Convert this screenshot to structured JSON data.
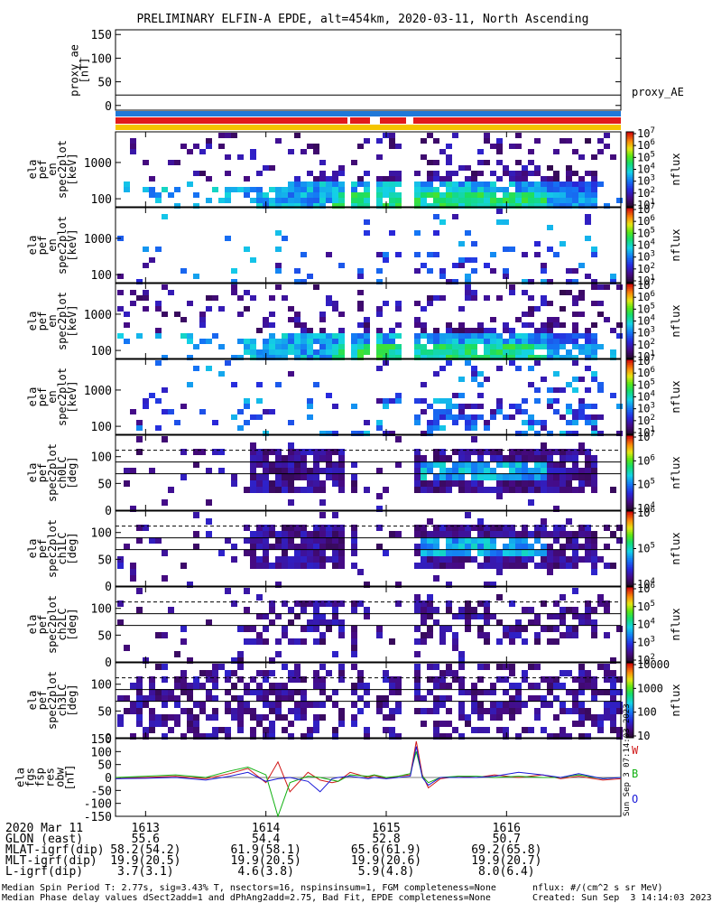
{
  "title": "PRELIMINARY ELFIN-A EPDE, alt=454km, 2020-03-11, North Ascending",
  "chart_data": [
    {
      "type": "line",
      "id": "proxy_ae",
      "ylabel_lines": [
        "proxy_ae",
        "[nT]"
      ],
      "yticks": [
        "0",
        "50",
        "100",
        "150"
      ],
      "ylim": [
        -10,
        160
      ],
      "legend": "proxy_AE",
      "series": [
        {
          "name": "proxy_AE",
          "value": 22
        }
      ]
    },
    {
      "type": "bar",
      "id": "status-bars",
      "colors": [
        "#1f78d8",
        "#e11b1b",
        "#f5c400"
      ]
    },
    {
      "type": "heatmap",
      "id": "spec-en-1",
      "ylabel_lines": [
        "ela",
        "pef",
        "en",
        "spec2plot",
        "[keV]"
      ],
      "yscale": "log",
      "yticks": [
        "100",
        "1000"
      ],
      "ylim": [
        60,
        7000
      ],
      "cbar_ticks": [
        "10^1",
        "10^2",
        "10^3",
        "10^4",
        "10^5",
        "10^6",
        "10^7"
      ],
      "cbar_label": "nflux",
      "cbar_scale": "log",
      "density": 1.0,
      "x_extent": [
        1612.75,
        1616.95
      ]
    },
    {
      "type": "heatmap",
      "id": "spec-en-2",
      "ylabel_lines": [
        "ela",
        "pef",
        "en",
        "spec2plot",
        "[keV]"
      ],
      "yscale": "log",
      "yticks": [
        "100",
        "1000"
      ],
      "ylim": [
        60,
        7000
      ],
      "cbar_ticks": [
        "10^1",
        "10^2",
        "10^3",
        "10^4",
        "10^5",
        "10^6",
        "10^7"
      ],
      "cbar_label": "nflux",
      "cbar_scale": "log",
      "density": 0.15,
      "x_extent": [
        1612.75,
        1616.95
      ]
    },
    {
      "type": "heatmap",
      "id": "spec-en-3",
      "ylabel_lines": [
        "ela",
        "pef",
        "en",
        "spec2plot",
        "[keV]"
      ],
      "yscale": "log",
      "yticks": [
        "100",
        "1000"
      ],
      "ylim": [
        60,
        7000
      ],
      "cbar_ticks": [
        "10^1",
        "10^2",
        "10^3",
        "10^4",
        "10^5",
        "10^6",
        "10^7"
      ],
      "cbar_label": "nflux",
      "cbar_scale": "log",
      "density": 1.0,
      "x_extent": [
        1612.75,
        1616.95
      ]
    },
    {
      "type": "heatmap",
      "id": "spec-en-4",
      "ylabel_lines": [
        "ela",
        "pef",
        "en",
        "spec2plot",
        "[keV]"
      ],
      "yscale": "log",
      "yticks": [
        "100",
        "1000"
      ],
      "ylim": [
        60,
        7000
      ],
      "cbar_ticks": [
        "10^1",
        "10^2",
        "10^3",
        "10^4",
        "10^5",
        "10^6",
        "10^7"
      ],
      "cbar_label": "nflux",
      "cbar_scale": "log",
      "density": 0.3,
      "x_extent": [
        1612.75,
        1616.95
      ]
    },
    {
      "type": "heatmap",
      "id": "spec-pa-0",
      "ylabel_lines": [
        "ela",
        "pef",
        "spec2plot",
        "ch0LC",
        "[deg]"
      ],
      "yticks": [
        "0",
        "50",
        "100"
      ],
      "ylim": [
        0,
        140
      ],
      "hlines_solid": [
        68,
        90
      ],
      "hlines_dashed": [
        112
      ],
      "cbar_ticks": [
        "10^4",
        "10^5",
        "10^6",
        "10^7"
      ],
      "cbar_label": "nflux",
      "cbar_scale": "log",
      "x_extent": [
        1612.75,
        1616.95
      ]
    },
    {
      "type": "heatmap",
      "id": "spec-pa-1",
      "ylabel_lines": [
        "ela",
        "pef",
        "spec2plot",
        "ch1LC",
        "[deg]"
      ],
      "yticks": [
        "0",
        "50",
        "100"
      ],
      "ylim": [
        0,
        140
      ],
      "hlines_solid": [
        68,
        90
      ],
      "hlines_dashed": [
        112
      ],
      "cbar_ticks": [
        "10^4",
        "10^5",
        "10^6"
      ],
      "cbar_label": "nflux",
      "cbar_scale": "log",
      "x_extent": [
        1612.75,
        1616.95
      ]
    },
    {
      "type": "heatmap",
      "id": "spec-pa-2",
      "ylabel_lines": [
        "ela",
        "pef",
        "spec2plot",
        "ch2LC",
        "[deg]"
      ],
      "yticks": [
        "0",
        "50",
        "100"
      ],
      "ylim": [
        0,
        140
      ],
      "hlines_solid": [
        68,
        90
      ],
      "hlines_dashed": [
        112
      ],
      "cbar_ticks": [
        "10^2",
        "10^3",
        "10^4",
        "10^5",
        "10^6"
      ],
      "cbar_label": "nflux",
      "cbar_scale": "log",
      "x_extent": [
        1612.75,
        1616.95
      ]
    },
    {
      "type": "heatmap",
      "id": "spec-pa-3",
      "ylabel_lines": [
        "ela",
        "pef",
        "spec2plot",
        "ch3LC",
        "[deg]"
      ],
      "yticks": [
        "0",
        "50",
        "100"
      ],
      "ylim": [
        0,
        140
      ],
      "hlines_solid": [
        68,
        90
      ],
      "hlines_dashed": [
        112
      ],
      "cbar_ticks": [
        "10",
        "100",
        "1000",
        "10000"
      ],
      "cbar_label": "nflux",
      "cbar_scale": "log",
      "x_extent": [
        1612.75,
        1616.95
      ]
    },
    {
      "type": "line",
      "id": "fgm",
      "ylabel_lines": [
        "ela",
        "fgs",
        "fsp",
        "res",
        "obw",
        "[nT]"
      ],
      "yticks": [
        "-150",
        "-100",
        "-50",
        "0",
        "50",
        "100",
        "150"
      ],
      "ylim": [
        -150,
        150
      ],
      "legend_labels": [
        "W",
        "B",
        "O"
      ],
      "xlim": [
        1612.75,
        1616.95
      ],
      "series": [
        {
          "name": "W",
          "color": "#d01818",
          "x": [
            1612.75,
            1613.0,
            1613.25,
            1613.5,
            1613.7,
            1613.85,
            1614.0,
            1614.1,
            1614.2,
            1614.35,
            1614.45,
            1614.55,
            1614.6,
            1614.7,
            1614.85,
            1614.9,
            1615.0,
            1615.1,
            1615.2,
            1615.25,
            1615.3,
            1615.35,
            1615.45,
            1615.6,
            1615.75,
            1615.9,
            1616.1,
            1616.3,
            1616.45,
            1616.6,
            1616.8,
            1616.95
          ],
          "y": [
            -5,
            0,
            5,
            -5,
            15,
            35,
            -20,
            60,
            -55,
            20,
            -10,
            -20,
            -15,
            20,
            0,
            8,
            -5,
            5,
            10,
            140,
            10,
            -40,
            -5,
            5,
            0,
            10,
            0,
            10,
            -5,
            5,
            -10,
            -5
          ]
        },
        {
          "name": "B",
          "color": "#10b010",
          "x": [
            1612.75,
            1613.0,
            1613.25,
            1613.5,
            1613.7,
            1613.85,
            1614.0,
            1614.1,
            1614.2,
            1614.35,
            1614.45,
            1614.55,
            1614.6,
            1614.7,
            1614.85,
            1614.9,
            1615.0,
            1615.1,
            1615.2,
            1615.25,
            1615.3,
            1615.35,
            1615.45,
            1615.6,
            1615.75,
            1615.9,
            1616.1,
            1616.3,
            1616.45,
            1616.6,
            1616.8,
            1616.95
          ],
          "y": [
            0,
            5,
            10,
            0,
            25,
            40,
            10,
            -150,
            -20,
            5,
            0,
            -10,
            -15,
            10,
            5,
            10,
            0,
            5,
            15,
            100,
            5,
            -20,
            0,
            5,
            5,
            0,
            5,
            0,
            0,
            10,
            -5,
            0
          ]
        },
        {
          "name": "O",
          "color": "#1818d8",
          "x": [
            1612.75,
            1613.0,
            1613.25,
            1613.5,
            1613.7,
            1613.85,
            1614.0,
            1614.1,
            1614.2,
            1614.35,
            1614.45,
            1614.55,
            1614.6,
            1614.7,
            1614.85,
            1614.9,
            1615.0,
            1615.1,
            1615.2,
            1615.25,
            1615.3,
            1615.35,
            1615.45,
            1615.6,
            1615.75,
            1615.9,
            1616.1,
            1616.3,
            1616.45,
            1616.6,
            1616.8,
            1616.95
          ],
          "y": [
            -5,
            -3,
            0,
            -10,
            5,
            20,
            -15,
            -5,
            0,
            -15,
            -55,
            -5,
            0,
            5,
            -5,
            0,
            -5,
            0,
            5,
            120,
            0,
            -30,
            0,
            0,
            0,
            5,
            20,
            10,
            0,
            15,
            -5,
            0
          ]
        }
      ]
    }
  ],
  "xaxis": {
    "rows": [
      {
        "label": "2020 Mar 11",
        "values": [
          "1613",
          "1614",
          "1615",
          "1616"
        ]
      },
      {
        "label": "GLON (east)",
        "values": [
          "55.6",
          "54.4",
          "52.8",
          "50.7"
        ]
      },
      {
        "label": "MLAT-igrf(dip)",
        "values": [
          "58.2(54.2)",
          "61.9(58.1)",
          "65.6(61.9)",
          "69.2(65.8)"
        ]
      },
      {
        "label": "MLT-igrf(dip)",
        "values": [
          "19.9(20.5)",
          "19.9(20.5)",
          "19.9(20.6)",
          "19.9(20.7)"
        ]
      },
      {
        "label": "L-igrf(dip)",
        "values": [
          "3.7(3.1)",
          "4.6(3.8)",
          "5.9(4.8)",
          "8.0(6.4)"
        ]
      }
    ],
    "tick_values": [
      1613,
      1614,
      1615,
      1616
    ]
  },
  "footer": {
    "line1_left": "Median Spin Period T: 2.77s, sig=3.43% T, nsectors=16, nspinsinsum=1, FGM completeness=None",
    "line2_left": "Median Phase delay values dSect2add=1 and dPhAng2add=2.75, Bad Fit, EPDE completeness=None",
    "line1_right": "nflux: #/(cm^2 s sr MeV)",
    "line2_right": "Created: Sun Sep  3 14:14:03 2023",
    "vertical_stamp": "Sun Sep  3 07:14:03 2023"
  }
}
